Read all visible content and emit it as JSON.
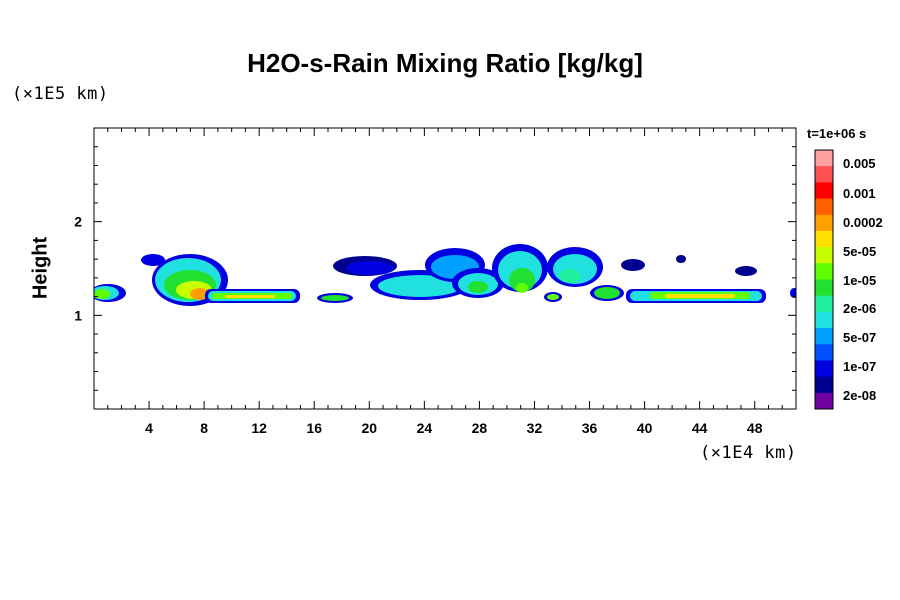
{
  "title": "H2O-s-Rain Mixing Ratio [kg/kg]",
  "time_label": "t=1e+06 s",
  "colorbar": {
    "labels": [
      "0.005",
      "0.001",
      "0.0002",
      "5e-05",
      "1e-05",
      "2e-06",
      "5e-07",
      "1e-07",
      "2e-08"
    ],
    "colors": [
      "#ffa0a0",
      "#ff5050",
      "#ff0000",
      "#ff6000",
      "#ffa000",
      "#ffe000",
      "#c8ff00",
      "#60ff00",
      "#20e030",
      "#20f0a0",
      "#20e0e0",
      "#00a0ff",
      "#0050ff",
      "#0000e0",
      "#000090",
      "#7000a0"
    ]
  },
  "chart_data": {
    "type": "heatmap",
    "title": "H2O-s-Rain Mixing Ratio [kg/kg]",
    "xlabel": "",
    "ylabel": "Height",
    "x_scale_label": "(×1E4 km)",
    "y_scale_label": "(×1E5 km)",
    "xlim": [
      0,
      51
    ],
    "ylim": [
      0,
      3
    ],
    "x_ticks": [
      4,
      8,
      12,
      16,
      20,
      24,
      28,
      32,
      36,
      40,
      44,
      48
    ],
    "y_ticks": [
      1,
      2
    ],
    "grid": false,
    "cells": [
      {
        "x": 0.5,
        "y": 1.2,
        "level": 8
      },
      {
        "x": 6.0,
        "y": 1.4,
        "level": 7
      },
      {
        "x": 7.5,
        "y": 1.25,
        "level": 5
      },
      {
        "x": 11.5,
        "y": 1.2,
        "level": 6
      },
      {
        "x": 18.0,
        "y": 1.45,
        "level": 14
      },
      {
        "x": 22.0,
        "y": 1.3,
        "level": 10
      },
      {
        "x": 25.5,
        "y": 1.45,
        "level": 10
      },
      {
        "x": 27.5,
        "y": 1.3,
        "level": 8
      },
      {
        "x": 30.5,
        "y": 1.4,
        "level": 8
      },
      {
        "x": 33.5,
        "y": 1.4,
        "level": 10
      },
      {
        "x": 37.5,
        "y": 1.25,
        "level": 9
      },
      {
        "x": 43.5,
        "y": 1.2,
        "level": 6
      }
    ]
  }
}
